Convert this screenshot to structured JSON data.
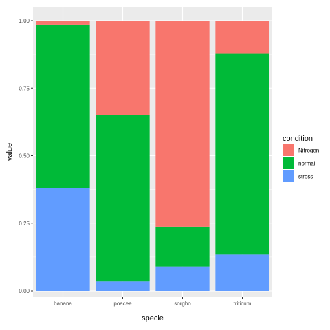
{
  "chart_data": {
    "type": "bar",
    "stacked": "fill",
    "categories": [
      "banana",
      "poacee",
      "sorgho",
      "triticum"
    ],
    "series": [
      {
        "name": "Nitrogen",
        "color": "#F8766D",
        "values": [
          0.015,
          0.351,
          0.763,
          0.121
        ]
      },
      {
        "name": "normal",
        "color": "#00BA38",
        "values": [
          0.604,
          0.614,
          0.147,
          0.745
        ]
      },
      {
        "name": "stress",
        "color": "#619CFF",
        "values": [
          0.381,
          0.035,
          0.09,
          0.134
        ]
      }
    ],
    "xlabel": "specie",
    "ylabel": "value",
    "ylim": [
      0,
      1
    ],
    "yticks": [
      "0.00",
      "0.25",
      "0.50",
      "0.75",
      "1.00"
    ],
    "legend": {
      "title": "condition",
      "position": "right"
    },
    "panel_background": "#EBEBEB",
    "grid_color": "#FFFFFF",
    "grid": true
  }
}
